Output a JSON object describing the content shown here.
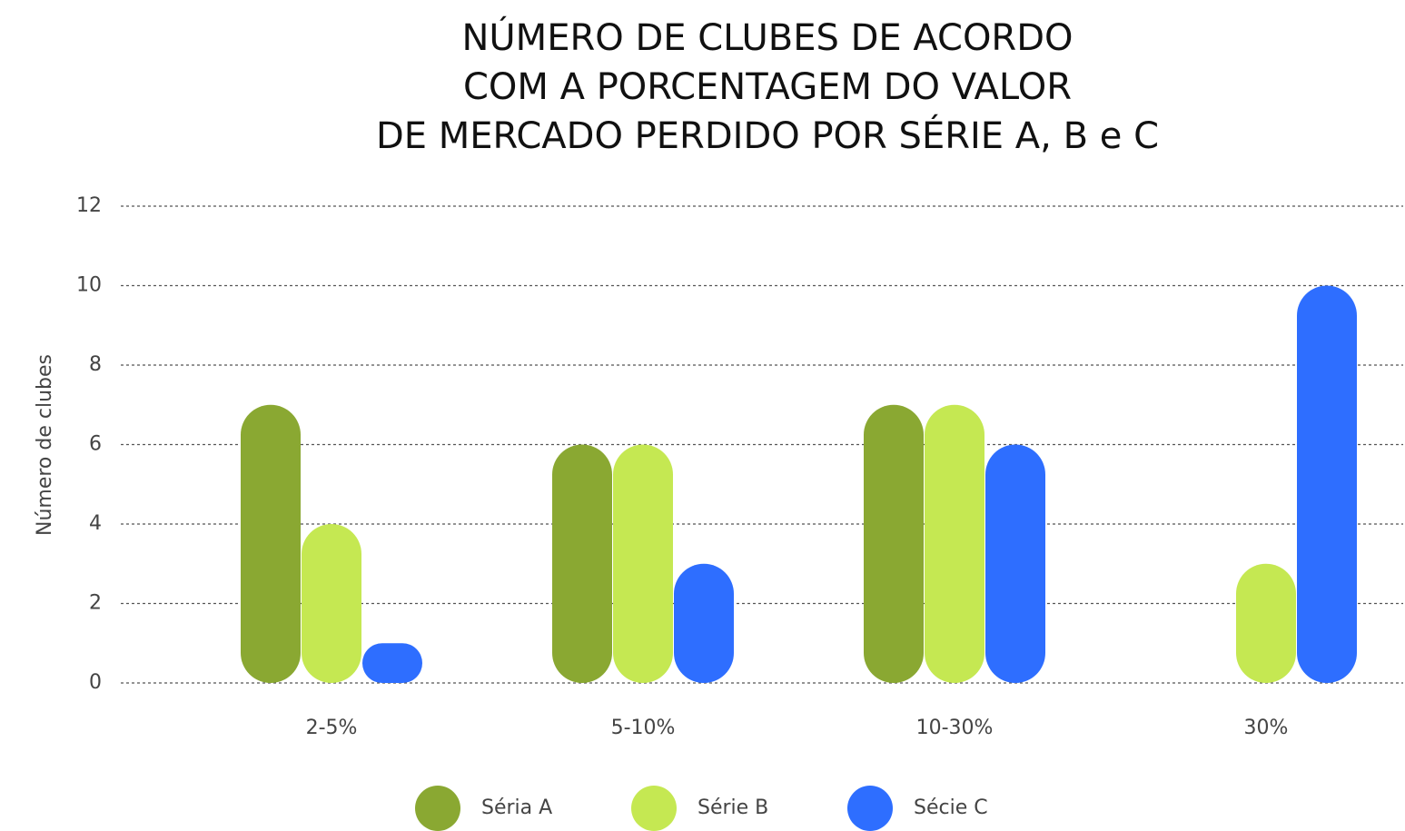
{
  "chart_data": {
    "type": "bar",
    "title": [
      "NÚMERO DE CLUBES DE ACORDO",
      "COM A PORCENTAGEM DO VALOR",
      "DE MERCADO PERDIDO POR SÉRIE A, B e C"
    ],
    "y_label": "Número de clubes",
    "categories": [
      "2-5%",
      "5-10%",
      "10-30%",
      "30%"
    ],
    "series": [
      {
        "name": "Séria A",
        "color": "#8aa832",
        "values": [
          7,
          6,
          7,
          0
        ]
      },
      {
        "name": "Série B",
        "color": "#c5e852",
        "values": [
          4,
          6,
          7,
          3
        ]
      },
      {
        "name": "Sécie C",
        "color": "#2e6eff",
        "values": [
          1,
          3,
          6,
          10
        ]
      }
    ],
    "ylim": [
      0,
      12
    ],
    "yticks": [
      0,
      2,
      4,
      6,
      8,
      10,
      12
    ],
    "grid": true,
    "legend": "bottom"
  }
}
